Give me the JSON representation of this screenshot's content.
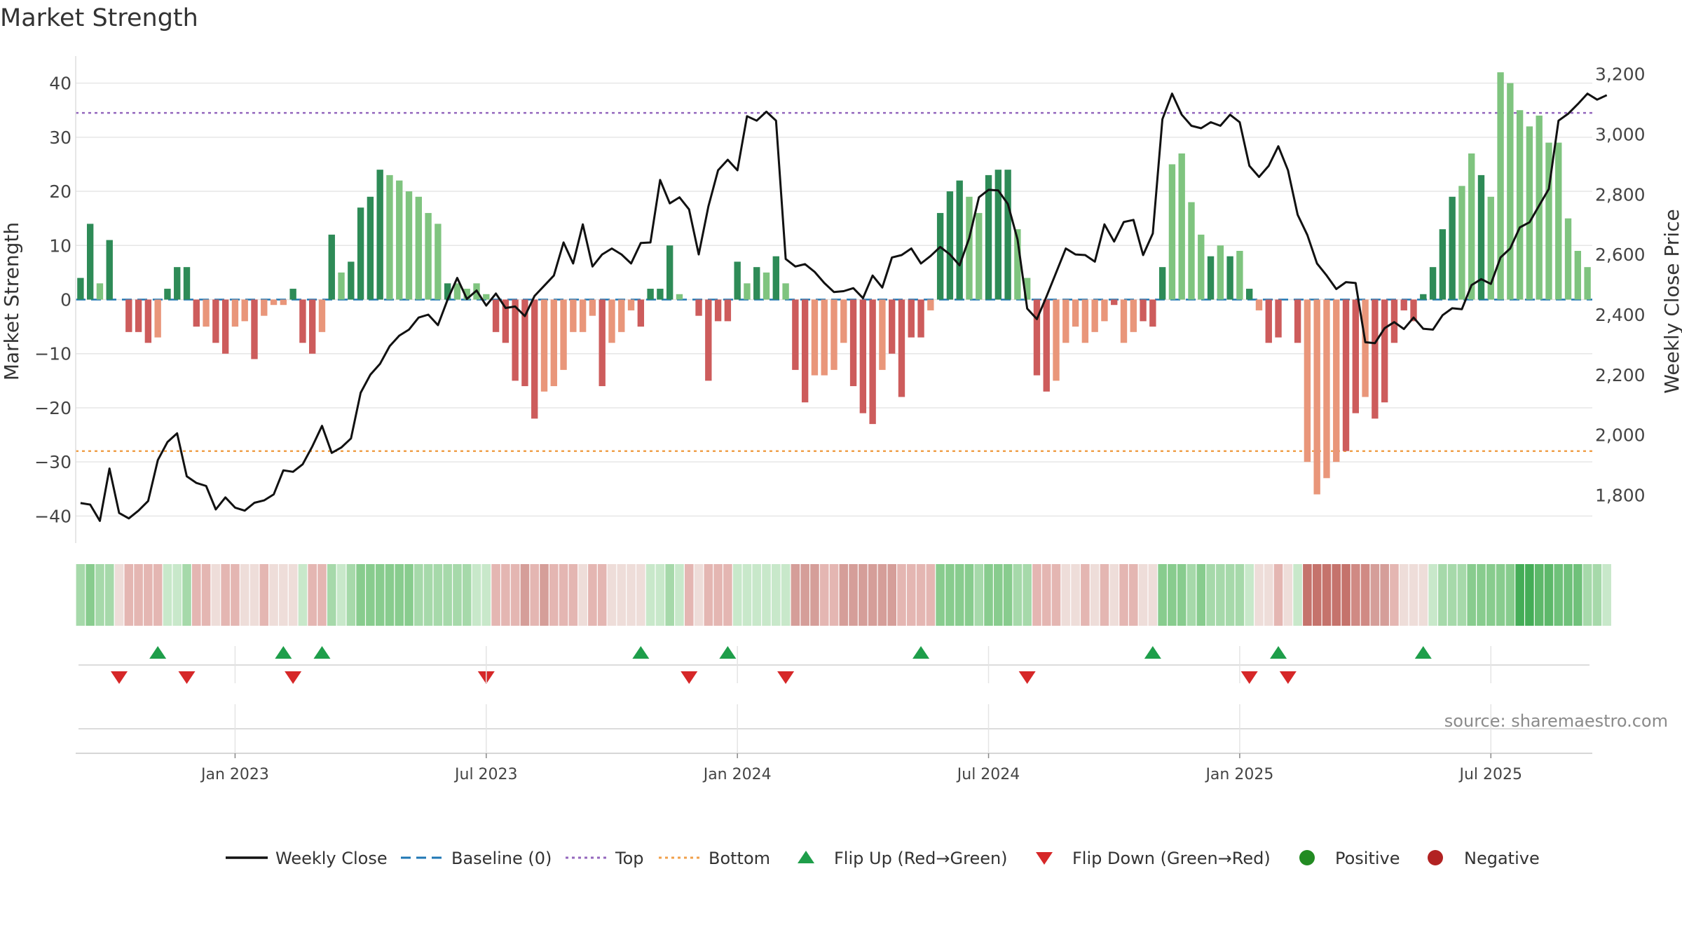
{
  "chart_data": {
    "type": "bar",
    "title": "Market Strength",
    "ylabel_left": "Market Strength",
    "ylabel_right": "Weekly Close Price",
    "left_ticks": [
      "40",
      "30",
      "20",
      "10",
      "0",
      "−10",
      "−20",
      "−30",
      "−40"
    ],
    "left_ylim": [
      -45,
      45
    ],
    "right_ticks": [
      "3,200",
      "3,000",
      "2,800",
      "2,600",
      "2,400",
      "2,200",
      "2,000",
      "1,800"
    ],
    "right_ylim": [
      1640,
      3260
    ],
    "x_ticks": [
      "Jan 2023",
      "Jul 2023",
      "Jan 2024",
      "Jul 2024",
      "Jan 2025",
      "Jul 2025"
    ],
    "x_tick_weeks": [
      16,
      42,
      68,
      94,
      120,
      146
    ],
    "top_level": 34.5,
    "bottom_level": -28,
    "strength": [
      4,
      14,
      3,
      11,
      0,
      -6,
      -6,
      -8,
      -7,
      2,
      6,
      6,
      -5,
      -5,
      -8,
      -10,
      -5,
      -4,
      -11,
      -3,
      -1,
      -1,
      2,
      -8,
      -10,
      -6,
      12,
      5,
      7,
      17,
      19,
      24,
      23,
      22,
      20,
      19,
      16,
      14,
      3,
      3,
      2,
      3,
      1,
      -6,
      -8,
      -15,
      -16,
      -22,
      -17,
      -16,
      -13,
      -6,
      -6,
      -3,
      -16,
      -8,
      -6,
      -2,
      -5,
      2,
      2,
      10,
      1,
      0,
      -3,
      -15,
      -4,
      -4,
      7,
      3,
      6,
      5,
      8,
      3,
      -13,
      -19,
      -14,
      -14,
      -13,
      -8,
      -16,
      -21,
      -23,
      -13,
      -10,
      -18,
      -7,
      -7,
      -2,
      16,
      20,
      22,
      19,
      16,
      23,
      24,
      24,
      13,
      4,
      -14,
      -17,
      -15,
      -8,
      -5,
      -8,
      -6,
      -4,
      -1,
      -8,
      -6,
      -4,
      -5,
      6,
      25,
      27,
      18,
      12,
      8,
      10,
      8,
      9,
      2,
      -2,
      -8,
      -7,
      0,
      -8,
      -30,
      -36,
      -33,
      -30,
      -28,
      -21,
      -18,
      -22,
      -19,
      -8,
      -2,
      -4,
      1,
      6,
      13,
      19,
      21,
      27,
      23,
      19,
      42,
      40,
      35,
      32,
      34,
      29,
      29,
      15,
      9,
      6
    ],
    "strength_shade": [
      1,
      1,
      0,
      1,
      0,
      1,
      1,
      1,
      0,
      1,
      1,
      1,
      1,
      0,
      1,
      1,
      0,
      0,
      1,
      0,
      0,
      0,
      1,
      1,
      1,
      0,
      1,
      0,
      1,
      1,
      1,
      1,
      0,
      0,
      0,
      0,
      0,
      0,
      1,
      0,
      0,
      0,
      0,
      1,
      1,
      1,
      1,
      1,
      0,
      0,
      0,
      0,
      0,
      0,
      1,
      0,
      0,
      0,
      1,
      1,
      1,
      1,
      0,
      0,
      1,
      1,
      1,
      1,
      1,
      0,
      1,
      0,
      1,
      0,
      1,
      1,
      0,
      0,
      0,
      0,
      1,
      1,
      1,
      0,
      1,
      1,
      1,
      1,
      0,
      1,
      1,
      1,
      0,
      0,
      1,
      1,
      1,
      0,
      0,
      1,
      1,
      0,
      0,
      0,
      0,
      0,
      0,
      1,
      0,
      0,
      1,
      1,
      1,
      0,
      0,
      0,
      0,
      1,
      0,
      1,
      0,
      1,
      0,
      1,
      1,
      1,
      1,
      0,
      0,
      0,
      0,
      1,
      1,
      0,
      1,
      1,
      1,
      1,
      1,
      1,
      1,
      1,
      1,
      0,
      0,
      1,
      0,
      0,
      0,
      0,
      0,
      0,
      0,
      0
    ],
    "weekly_close": [
      1773,
      1768,
      1714,
      1888,
      1740,
      1722,
      1748,
      1780,
      1916,
      1976,
      2005,
      1862,
      1840,
      1830,
      1752,
      1792,
      1758,
      1748,
      1774,
      1782,
      1802,
      1882,
      1877,
      1902,
      1962,
      2030,
      1940,
      1958,
      1988,
      2140,
      2200,
      2236,
      2295,
      2330,
      2350,
      2390,
      2400,
      2365,
      2450,
      2522,
      2452,
      2480,
      2430,
      2470,
      2422,
      2427,
      2395,
      2462,
      2496,
      2530,
      2640,
      2570,
      2700,
      2560,
      2600,
      2620,
      2600,
      2570,
      2638,
      2640,
      2848,
      2770,
      2790,
      2750,
      2600,
      2760,
      2880,
      2915,
      2880,
      3060,
      3045,
      3075,
      3045,
      2585,
      2560,
      2568,
      2542,
      2505,
      2475,
      2478,
      2488,
      2455,
      2530,
      2490,
      2590,
      2598,
      2620,
      2570,
      2595,
      2625,
      2600,
      2564,
      2655,
      2790,
      2815,
      2813,
      2768,
      2650,
      2420,
      2385,
      2460,
      2540,
      2620,
      2600,
      2598,
      2576,
      2700,
      2643,
      2708,
      2715,
      2598,
      2670,
      3050,
      3135,
      3065,
      3028,
      3020,
      3040,
      3028,
      3065,
      3040,
      2895,
      2858,
      2895,
      2960,
      2880,
      2732,
      2665,
      2570,
      2530,
      2485,
      2508,
      2505,
      2308,
      2305,
      2355,
      2375,
      2352,
      2390,
      2353,
      2350,
      2398,
      2421,
      2418,
      2498,
      2518,
      2502,
      2590,
      2620,
      2690,
      2707,
      2763,
      2818,
      3045,
      3068,
      3100,
      3135,
      3115,
      3130
    ]
  },
  "quality_strip": {
    "colors": [
      "#a6d9aa",
      "#88cc8e",
      "#a6d9aa",
      "#a6d9aa",
      "#eeddd9",
      "#e4b6b2",
      "#e4b6b2",
      "#e4b6b2",
      "#e4b6b2",
      "#c8e8ca",
      "#c8e8ca",
      "#a6d9aa",
      "#e4b6b2",
      "#e4b6b2",
      "#eeddd9",
      "#e4b6b2",
      "#e4b6b2",
      "#eeddd9",
      "#eeddd9",
      "#e4b6b2",
      "#eeddd9",
      "#eeddd9",
      "#eeddd9",
      "#c8e8ca",
      "#e4b6b2",
      "#e4b6b2",
      "#a6d9aa",
      "#c8e8ca",
      "#a6d9aa",
      "#88cc8e",
      "#88cc8e",
      "#88cc8e",
      "#88cc8e",
      "#88cc8e",
      "#88cc8e",
      "#a6d9aa",
      "#a6d9aa",
      "#a6d9aa",
      "#a6d9aa",
      "#a6d9aa",
      "#a6d9aa",
      "#c8e8ca",
      "#c8e8ca",
      "#e4b6b2",
      "#e4b6b2",
      "#e4b6b2",
      "#d59e99",
      "#e4b6b2",
      "#d59e99",
      "#e4b6b2",
      "#e4b6b2",
      "#e4b6b2",
      "#eeddd9",
      "#e4b6b2",
      "#e4b6b2",
      "#eeddd9",
      "#eeddd9",
      "#eeddd9",
      "#eeddd9",
      "#c8e8ca",
      "#c8e8ca",
      "#a6d9aa",
      "#c8e8ca",
      "#e4b6b2",
      "#eeddd9",
      "#e4b6b2",
      "#e4b6b2",
      "#e4b6b2",
      "#c8e8ca",
      "#c8e8ca",
      "#c8e8ca",
      "#c8e8ca",
      "#c8e8ca",
      "#c8e8ca",
      "#d59e99",
      "#d59e99",
      "#d59e99",
      "#e4b6b2",
      "#e4b6b2",
      "#d59e99",
      "#d59e99",
      "#d59e99",
      "#d59e99",
      "#d59e99",
      "#d59e99",
      "#e4b6b2",
      "#e4b6b2",
      "#e4b6b2",
      "#e4b6b2",
      "#88cc8e",
      "#88cc8e",
      "#88cc8e",
      "#88cc8e",
      "#a6d9aa",
      "#88cc8e",
      "#88cc8e",
      "#88cc8e",
      "#a6d9aa",
      "#a6d9aa",
      "#e4b6b2",
      "#e4b6b2",
      "#e4b6b2",
      "#eeddd9",
      "#eeddd9",
      "#e4b6b2",
      "#eeddd9",
      "#e4b6b2",
      "#eeddd9",
      "#e4b6b2",
      "#e4b6b2",
      "#eeddd9",
      "#eeddd9",
      "#88cc8e",
      "#88cc8e",
      "#88cc8e",
      "#a6d9aa",
      "#88cc8e",
      "#a6d9aa",
      "#a6d9aa",
      "#a6d9aa",
      "#a6d9aa",
      "#c8e8ca",
      "#eeddd9",
      "#eeddd9",
      "#e4b6b2",
      "#eeddd9",
      "#c8e8ca",
      "#c5736c",
      "#c5736c",
      "#c5736c",
      "#c5736c",
      "#c5736c",
      "#d08a84",
      "#d08a84",
      "#d59e99",
      "#d59e99",
      "#e4b6b2",
      "#eeddd9",
      "#eeddd9",
      "#eeddd9",
      "#c8e8ca",
      "#a6d9aa",
      "#a6d9aa",
      "#a6d9aa",
      "#88cc8e",
      "#88cc8e",
      "#88cc8e",
      "#88cc8e",
      "#88cc8e",
      "#44ad57",
      "#44ad57",
      "#5db86a",
      "#5db86a",
      "#6fc17a",
      "#6fc17a",
      "#6fc17a",
      "#a6d9aa",
      "#a6d9aa",
      "#c8e8ca"
    ]
  },
  "flip_up_weeks": [
    8,
    21,
    25,
    58,
    67,
    87,
    111,
    124,
    139
  ],
  "flip_down_weeks": [
    4,
    11,
    22,
    42,
    63,
    73,
    98,
    121,
    125
  ],
  "legend": {
    "weekly_close": "Weekly Close",
    "baseline": "Baseline (0)",
    "top": "Top",
    "bottom": "Bottom",
    "flip_up": "Flip Up (Red→Green)",
    "flip_down": "Flip Down (Green→Red)",
    "positive": "Positive",
    "negative": "Negative"
  },
  "colors": {
    "pos_dark": "#2e8b57",
    "pos_light": "#7fc47f",
    "neg_dark": "#cd5c5c",
    "neg_light": "#e9967a",
    "close_line": "#111111",
    "baseline": "#1f77b4",
    "top_line": "#9467bd",
    "bottom_line": "#f0a04b",
    "flip_up": "#1e9e4a",
    "flip_down": "#d62728",
    "positive_dot": "#228b22",
    "negative_dot": "#b22222"
  },
  "source": "source: sharemaestro.com"
}
